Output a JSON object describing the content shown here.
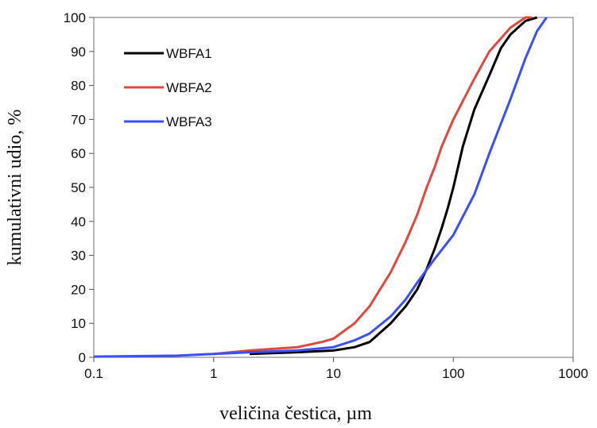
{
  "chart_data": {
    "type": "line",
    "xlabel": "veličina čestica, µm",
    "ylabel": "kumulativni udio, %",
    "xscale": "log",
    "xlim": [
      0.1,
      1000
    ],
    "ylim": [
      0,
      100
    ],
    "x_ticks": [
      0.1,
      1,
      10,
      100,
      1000
    ],
    "x_tick_labels": [
      "0.1",
      "1",
      "10",
      "100",
      "1000"
    ],
    "y_ticks": [
      0,
      10,
      20,
      30,
      40,
      50,
      60,
      70,
      80,
      90,
      100
    ],
    "y_tick_labels": [
      "0",
      "10",
      "20",
      "30",
      "40",
      "50",
      "60",
      "70",
      "80",
      "90",
      "100"
    ],
    "grid": false,
    "legend_position": "top-left",
    "series": [
      {
        "name": "WBFA1",
        "color": "#000000",
        "points": [
          [
            2,
            1
          ],
          [
            5,
            1.5
          ],
          [
            10,
            2
          ],
          [
            15,
            3
          ],
          [
            20,
            4.5
          ],
          [
            30,
            10
          ],
          [
            40,
            15
          ],
          [
            50,
            20
          ],
          [
            60,
            26
          ],
          [
            70,
            32
          ],
          [
            80,
            38
          ],
          [
            90,
            44
          ],
          [
            100,
            50
          ],
          [
            120,
            62
          ],
          [
            150,
            73
          ],
          [
            200,
            83
          ],
          [
            250,
            91
          ],
          [
            300,
            95
          ],
          [
            400,
            99
          ],
          [
            500,
            100
          ]
        ]
      },
      {
        "name": "WBFA2",
        "color": "#e0473f",
        "points": [
          [
            1,
            1
          ],
          [
            2,
            2
          ],
          [
            5,
            3
          ],
          [
            8,
            4.5
          ],
          [
            10,
            5.5
          ],
          [
            15,
            10
          ],
          [
            20,
            15
          ],
          [
            30,
            25
          ],
          [
            40,
            34
          ],
          [
            50,
            42
          ],
          [
            60,
            50
          ],
          [
            70,
            56
          ],
          [
            80,
            62
          ],
          [
            100,
            70
          ],
          [
            150,
            82
          ],
          [
            200,
            90
          ],
          [
            300,
            97
          ],
          [
            400,
            100
          ],
          [
            450,
            100
          ]
        ]
      },
      {
        "name": "WBFA3",
        "color": "#3a4fff",
        "points": [
          [
            0.1,
            0.2
          ],
          [
            0.5,
            0.5
          ],
          [
            1,
            1
          ],
          [
            2,
            1.5
          ],
          [
            5,
            2
          ],
          [
            10,
            3
          ],
          [
            15,
            5
          ],
          [
            20,
            7
          ],
          [
            30,
            12
          ],
          [
            40,
            17
          ],
          [
            50,
            22
          ],
          [
            70,
            29
          ],
          [
            100,
            36
          ],
          [
            150,
            48
          ],
          [
            200,
            60
          ],
          [
            300,
            76
          ],
          [
            400,
            88
          ],
          [
            500,
            96
          ],
          [
            600,
            100
          ]
        ]
      }
    ]
  }
}
